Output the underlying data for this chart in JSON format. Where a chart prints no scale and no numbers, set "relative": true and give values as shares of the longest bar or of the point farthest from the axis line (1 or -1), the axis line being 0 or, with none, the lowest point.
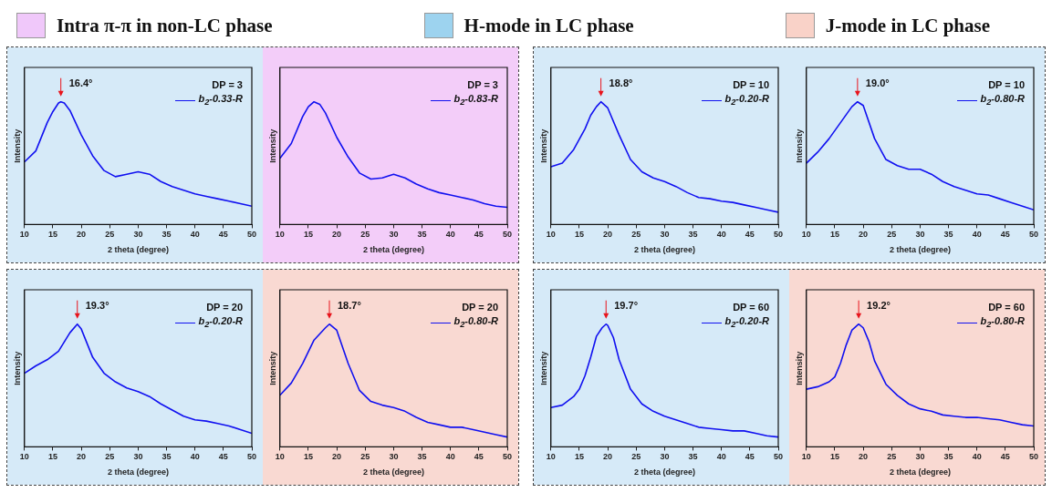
{
  "chart_data": [
    {
      "type": "other",
      "categories": [
        "Intra π-π in non-LC phase",
        "H-mode in LC phase",
        "J-mode in LC phase"
      ],
      "colors": [
        "#f0c8fa",
        "#9dd3ef",
        "#f9d2c8"
      ]
    },
    {
      "type": "line",
      "relative": true,
      "xlabel": "2 theta (degree)",
      "ylabel": "Intensity",
      "xlim": [
        10,
        50
      ],
      "xticks": [
        10,
        15,
        20,
        25,
        30,
        35,
        40,
        45,
        50
      ],
      "legend": "top right",
      "legend_title": "DP = 3",
      "bands": [
        {
          "axis": "x",
          "from": 10,
          "to": 50,
          "color": "#d6eaf8"
        }
      ],
      "annotations": [
        {
          "text": "16.4°",
          "x": 16.4,
          "y": 1
        }
      ],
      "x": [
        10,
        12,
        14,
        15,
        16,
        16.4,
        17,
        18,
        20,
        22,
        24,
        26,
        28,
        30,
        32,
        34,
        36,
        38,
        40,
        42,
        44,
        46,
        48,
        50
      ],
      "series": [
        {
          "name": "b$_{2}$-0.33-R",
          "color": "#1010f0",
          "values": [
            0.51,
            0.6,
            0.83,
            0.92,
            0.99,
            1,
            0.99,
            0.93,
            0.73,
            0.56,
            0.44,
            0.39,
            0.41,
            0.43,
            0.41,
            0.35,
            0.31,
            0.28,
            0.25,
            0.23,
            0.21,
            0.19,
            0.17,
            0.15
          ]
        }
      ]
    },
    {
      "type": "line",
      "relative": true,
      "xlabel": "2 theta (degree)",
      "ylabel": "Intensity",
      "xlim": [
        10,
        50
      ],
      "xticks": [
        10,
        15,
        20,
        25,
        30,
        35,
        40,
        45,
        50
      ],
      "legend": "top right",
      "legend_title": "DP = 3",
      "bands": [
        {
          "axis": "x",
          "from": 10,
          "to": 50,
          "color": "#f3cdf9"
        }
      ],
      "x": [
        10,
        12,
        14,
        15,
        16,
        17,
        18,
        20,
        22,
        24,
        26,
        28,
        30,
        32,
        34,
        36,
        38,
        40,
        42,
        44,
        46,
        48,
        50
      ],
      "series": [
        {
          "name": "b$_{2}$-0.83-R",
          "color": "#1010f0",
          "values": [
            0.54,
            0.66,
            0.88,
            0.96,
            1,
            0.98,
            0.91,
            0.71,
            0.55,
            0.42,
            0.37,
            0.38,
            0.41,
            0.38,
            0.33,
            0.29,
            0.26,
            0.24,
            0.22,
            0.2,
            0.17,
            0.15,
            0.14
          ]
        }
      ]
    },
    {
      "type": "line",
      "relative": true,
      "xlabel": "2 theta (degree)",
      "ylabel": "Intensity",
      "xlim": [
        10,
        50
      ],
      "xticks": [
        10,
        15,
        20,
        25,
        30,
        35,
        40,
        45,
        50
      ],
      "legend": "top right",
      "legend_title": "DP = 10",
      "bands": [
        {
          "axis": "x",
          "from": 10,
          "to": 50,
          "color": "#d6eaf8"
        }
      ],
      "annotations": [
        {
          "text": "18.8°",
          "x": 18.8,
          "y": 1
        }
      ],
      "x": [
        10,
        12,
        14,
        16,
        17,
        18,
        18.8,
        20,
        22,
        24,
        26,
        28,
        30,
        32,
        34,
        36,
        38,
        40,
        42,
        44,
        46,
        48,
        50
      ],
      "series": [
        {
          "name": "b$_{2}$-0.20-R",
          "color": "#1010f0",
          "values": [
            0.47,
            0.5,
            0.61,
            0.78,
            0.89,
            0.96,
            1,
            0.95,
            0.73,
            0.53,
            0.43,
            0.38,
            0.35,
            0.31,
            0.26,
            0.22,
            0.21,
            0.19,
            0.18,
            0.16,
            0.14,
            0.12,
            0.1
          ]
        }
      ]
    },
    {
      "type": "line",
      "relative": true,
      "xlabel": "2 theta (degree)",
      "ylabel": "Intensity",
      "xlim": [
        10,
        50
      ],
      "xticks": [
        10,
        15,
        20,
        25,
        30,
        35,
        40,
        45,
        50
      ],
      "legend": "top right",
      "legend_title": "DP = 10",
      "bands": [
        {
          "axis": "x",
          "from": 10,
          "to": 50,
          "color": "#d6eaf8"
        }
      ],
      "annotations": [
        {
          "text": "19.0°",
          "x": 19,
          "y": 1
        }
      ],
      "x": [
        10,
        12,
        14,
        16,
        18,
        19,
        20,
        22,
        24,
        26,
        28,
        30,
        32,
        34,
        36,
        38,
        40,
        42,
        44,
        46,
        48,
        50
      ],
      "series": [
        {
          "name": "b$_{2}$-0.80-R",
          "color": "#1010f0",
          "values": [
            0.5,
            0.59,
            0.7,
            0.83,
            0.96,
            1,
            0.97,
            0.7,
            0.53,
            0.48,
            0.45,
            0.45,
            0.41,
            0.35,
            0.31,
            0.28,
            0.25,
            0.24,
            0.21,
            0.18,
            0.15,
            0.12
          ]
        }
      ]
    },
    {
      "type": "line",
      "relative": true,
      "xlabel": "2 theta (degree)",
      "ylabel": "Intensity",
      "xlim": [
        10,
        50
      ],
      "xticks": [
        10,
        15,
        20,
        25,
        30,
        35,
        40,
        45,
        50
      ],
      "legend": "top right",
      "legend_title": "DP = 20",
      "bands": [
        {
          "axis": "x",
          "from": 10,
          "to": 50,
          "color": "#d6eaf8"
        }
      ],
      "annotations": [
        {
          "text": "19.3°",
          "x": 19.3,
          "y": 1
        }
      ],
      "x": [
        10,
        12,
        14,
        16,
        18,
        19.3,
        20,
        22,
        24,
        26,
        28,
        30,
        32,
        34,
        36,
        38,
        40,
        42,
        44,
        46,
        48,
        50
      ],
      "series": [
        {
          "name": "b$_{2}$-0.20-R",
          "color": "#1010f0",
          "values": [
            0.6,
            0.66,
            0.71,
            0.78,
            0.93,
            1,
            0.96,
            0.73,
            0.6,
            0.53,
            0.48,
            0.45,
            0.41,
            0.35,
            0.3,
            0.25,
            0.22,
            0.21,
            0.19,
            0.17,
            0.14,
            0.11
          ]
        }
      ]
    },
    {
      "type": "line",
      "relative": true,
      "xlabel": "2 theta (degree)",
      "ylabel": "Intensity",
      "xlim": [
        10,
        50
      ],
      "xticks": [
        10,
        15,
        20,
        25,
        30,
        35,
        40,
        45,
        50
      ],
      "legend": "top right",
      "legend_title": "DP = 20",
      "bands": [
        {
          "axis": "x",
          "from": 10,
          "to": 50,
          "color": "#f9d9d2"
        }
      ],
      "annotations": [
        {
          "text": "18.7°",
          "x": 18.7,
          "y": 1
        }
      ],
      "x": [
        10,
        12,
        14,
        16,
        18,
        18.7,
        20,
        22,
        24,
        26,
        28,
        30,
        32,
        34,
        36,
        38,
        40,
        42,
        44,
        46,
        48,
        50
      ],
      "series": [
        {
          "name": "b$_{2}$-0.80-R",
          "color": "#1010f0",
          "values": [
            0.42,
            0.52,
            0.68,
            0.87,
            0.97,
            1,
            0.95,
            0.68,
            0.46,
            0.37,
            0.34,
            0.32,
            0.29,
            0.24,
            0.2,
            0.18,
            0.16,
            0.16,
            0.14,
            0.12,
            0.1,
            0.08
          ]
        }
      ]
    },
    {
      "type": "line",
      "relative": true,
      "xlabel": "2 theta (degree)",
      "ylabel": "Intensity",
      "xlim": [
        10,
        50
      ],
      "xticks": [
        10,
        15,
        20,
        25,
        30,
        35,
        40,
        45,
        50
      ],
      "legend": "top right",
      "legend_title": "DP = 60",
      "bands": [
        {
          "axis": "x",
          "from": 10,
          "to": 50,
          "color": "#d6eaf8"
        }
      ],
      "annotations": [
        {
          "text": "19.7°",
          "x": 19.7,
          "y": 1
        }
      ],
      "x": [
        10,
        12,
        14,
        15,
        16,
        17,
        18,
        19,
        19.7,
        20,
        21,
        22,
        24,
        26,
        28,
        30,
        32,
        34,
        36,
        38,
        40,
        42,
        44,
        46,
        48,
        50
      ],
      "series": [
        {
          "name": "b$_{2}$-0.20-R",
          "color": "#1010f0",
          "values": [
            0.32,
            0.34,
            0.41,
            0.47,
            0.58,
            0.73,
            0.9,
            0.97,
            1,
            0.99,
            0.89,
            0.71,
            0.47,
            0.35,
            0.29,
            0.25,
            0.22,
            0.19,
            0.16,
            0.15,
            0.14,
            0.13,
            0.13,
            0.11,
            0.09,
            0.08
          ]
        }
      ]
    },
    {
      "type": "line",
      "relative": true,
      "xlabel": "2 theta (degree)",
      "ylabel": "Intensity",
      "xlim": [
        10,
        50
      ],
      "xticks": [
        10,
        15,
        20,
        25,
        30,
        35,
        40,
        45,
        50
      ],
      "legend": "top right",
      "legend_title": "DP = 60",
      "bands": [
        {
          "axis": "x",
          "from": 10,
          "to": 50,
          "color": "#f9d9d2"
        }
      ],
      "annotations": [
        {
          "text": "19.2°",
          "x": 19.2,
          "y": 1
        }
      ],
      "x": [
        10,
        12,
        14,
        15,
        16,
        17,
        18,
        19.2,
        20,
        21,
        22,
        24,
        26,
        28,
        30,
        32,
        34,
        36,
        38,
        40,
        42,
        44,
        46,
        48,
        50
      ],
      "series": [
        {
          "name": "b$_{2}$-0.80-R",
          "color": "#1010f0",
          "values": [
            0.47,
            0.49,
            0.53,
            0.57,
            0.68,
            0.83,
            0.95,
            1,
            0.97,
            0.86,
            0.7,
            0.51,
            0.42,
            0.35,
            0.31,
            0.29,
            0.26,
            0.25,
            0.24,
            0.24,
            0.23,
            0.22,
            0.2,
            0.18,
            0.17
          ]
        }
      ]
    }
  ]
}
